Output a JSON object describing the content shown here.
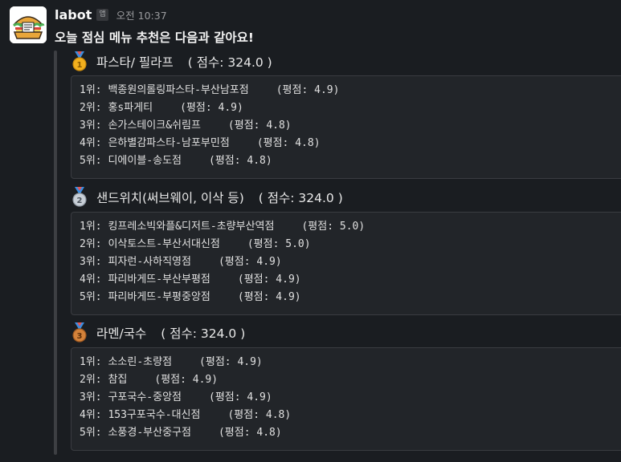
{
  "message": {
    "sender": "labot",
    "app_badge": "앱",
    "time": "오전 10:37",
    "intro": "오늘 점심 메뉴 추천은 다음과 같아요!"
  },
  "sections": [
    {
      "medal": "gold-medal-icon",
      "title": "파스타/ 필라프",
      "score": "( 점수: 324.0 )",
      "items": [
        {
          "rank": "1위:",
          "name": "백종원의롤링파스타-부산남포점",
          "rating": "(평점: 4.9)"
        },
        {
          "rank": "2위:",
          "name": "홍s파게티",
          "rating": "(평점: 4.9)"
        },
        {
          "rank": "3위:",
          "name": "손가스테이크&쉬림프",
          "rating": "(평점: 4.8)"
        },
        {
          "rank": "4위:",
          "name": "은하별감파스타-남포부민점",
          "rating": "(평점: 4.8)"
        },
        {
          "rank": "5위:",
          "name": "디에이블-송도점",
          "rating": "(평점: 4.8)"
        }
      ]
    },
    {
      "medal": "silver-medal-icon",
      "title": "샌드위치(써브웨이, 이삭 등)",
      "score": "( 점수: 324.0 )",
      "items": [
        {
          "rank": "1위:",
          "name": "킹프레소빅와플&디저트-초량부산역점",
          "rating": "(평점: 5.0)"
        },
        {
          "rank": "2위:",
          "name": "이삭토스트-부산서대신점",
          "rating": "(평점: 5.0)"
        },
        {
          "rank": "3위:",
          "name": "피자런-사하직영점",
          "rating": "(평점: 4.9)"
        },
        {
          "rank": "4위:",
          "name": "파리바게뜨-부산부평점",
          "rating": "(평점: 4.9)"
        },
        {
          "rank": "5위:",
          "name": "파리바게뜨-부평중앙점",
          "rating": "(평점: 4.9)"
        }
      ]
    },
    {
      "medal": "bronze-medal-icon",
      "title": "라멘/국수",
      "score": "( 점수: 324.0 )",
      "items": [
        {
          "rank": "1위:",
          "name": "소소린-초량점",
          "rating": "(평점: 4.9)"
        },
        {
          "rank": "2위:",
          "name": "참집",
          "rating": "(평점: 4.9)"
        },
        {
          "rank": "3위:",
          "name": "구포국수-중앙점",
          "rating": "(평점: 4.9)"
        },
        {
          "rank": "4위:",
          "name": "153구포국수-대신점",
          "rating": "(평점: 4.8)"
        },
        {
          "rank": "5위:",
          "name": "소풍경-부산중구점",
          "rating": "(평점: 4.8)"
        }
      ]
    }
  ],
  "colors": {
    "background": "#1a1d21",
    "code_background": "#222529",
    "gold": "#f2b01e",
    "silver": "#c7ced6",
    "bronze": "#d4823a",
    "ribbon": "#3b8de0"
  }
}
